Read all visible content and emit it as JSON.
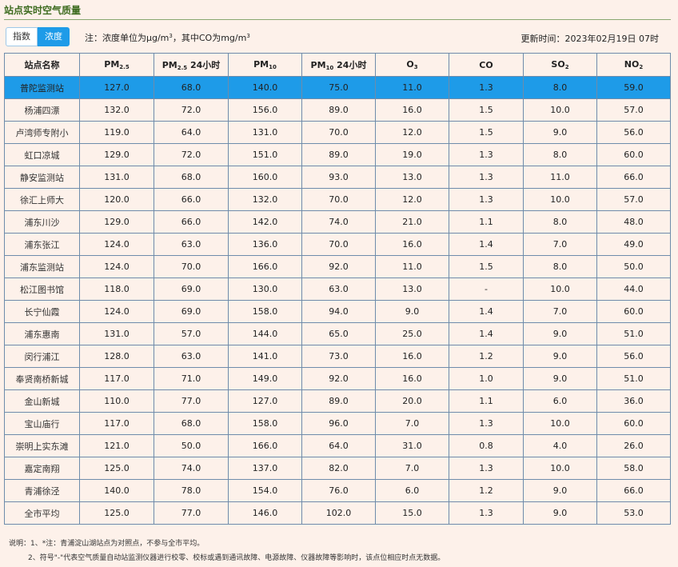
{
  "header": {
    "title": "站点实时空气质量",
    "toggle": {
      "index_label": "指数",
      "concentration_label": "浓度"
    },
    "note_prefix": "注：浓度单位为μg/m",
    "note_sup1": "3",
    "note_mid": "，其中CO为mg/m",
    "note_sup2": "3",
    "updated": "更新时间：2023年02月19日 07时"
  },
  "table": {
    "columns": [
      "站点名称",
      "PM2.5",
      "PM2.5 24小时",
      "PM10",
      "PM10 24小时",
      "O3",
      "CO",
      "SO2",
      "NO2"
    ],
    "rows": [
      [
        "普陀监测站",
        "127.0",
        "68.0",
        "140.0",
        "75.0",
        "11.0",
        "1.3",
        "8.0",
        "59.0"
      ],
      [
        "杨浦四漂",
        "132.0",
        "72.0",
        "156.0",
        "89.0",
        "16.0",
        "1.5",
        "10.0",
        "57.0"
      ],
      [
        "卢湾师专附小",
        "119.0",
        "64.0",
        "131.0",
        "70.0",
        "12.0",
        "1.5",
        "9.0",
        "56.0"
      ],
      [
        "虹口凉城",
        "129.0",
        "72.0",
        "151.0",
        "89.0",
        "19.0",
        "1.3",
        "8.0",
        "60.0"
      ],
      [
        "静安监测站",
        "131.0",
        "68.0",
        "160.0",
        "93.0",
        "13.0",
        "1.3",
        "11.0",
        "66.0"
      ],
      [
        "徐汇上师大",
        "120.0",
        "66.0",
        "132.0",
        "70.0",
        "12.0",
        "1.3",
        "10.0",
        "57.0"
      ],
      [
        "浦东川沙",
        "129.0",
        "66.0",
        "142.0",
        "74.0",
        "21.0",
        "1.1",
        "8.0",
        "48.0"
      ],
      [
        "浦东张江",
        "124.0",
        "63.0",
        "136.0",
        "70.0",
        "16.0",
        "1.4",
        "7.0",
        "49.0"
      ],
      [
        "浦东监测站",
        "124.0",
        "70.0",
        "166.0",
        "92.0",
        "11.0",
        "1.5",
        "8.0",
        "50.0"
      ],
      [
        "松江图书馆",
        "118.0",
        "69.0",
        "130.0",
        "63.0",
        "13.0",
        "-",
        "10.0",
        "44.0"
      ],
      [
        "长宁仙霞",
        "124.0",
        "69.0",
        "158.0",
        "94.0",
        "9.0",
        "1.4",
        "7.0",
        "60.0"
      ],
      [
        "浦东惠南",
        "131.0",
        "57.0",
        "144.0",
        "65.0",
        "25.0",
        "1.4",
        "9.0",
        "51.0"
      ],
      [
        "闵行浦江",
        "128.0",
        "63.0",
        "141.0",
        "73.0",
        "16.0",
        "1.2",
        "9.0",
        "56.0"
      ],
      [
        "奉贤南桥新城",
        "117.0",
        "71.0",
        "149.0",
        "92.0",
        "16.0",
        "1.0",
        "9.0",
        "51.0"
      ],
      [
        "金山新城",
        "110.0",
        "77.0",
        "127.0",
        "89.0",
        "20.0",
        "1.1",
        "6.0",
        "36.0"
      ],
      [
        "宝山庙行",
        "117.0",
        "68.0",
        "158.0",
        "96.0",
        "7.0",
        "1.3",
        "10.0",
        "60.0"
      ],
      [
        "崇明上实东滩",
        "121.0",
        "50.0",
        "166.0",
        "64.0",
        "31.0",
        "0.8",
        "4.0",
        "26.0"
      ],
      [
        "嘉定南翔",
        "125.0",
        "74.0",
        "137.0",
        "82.0",
        "7.0",
        "1.3",
        "10.0",
        "58.0"
      ],
      [
        "青浦徐泾",
        "140.0",
        "78.0",
        "154.0",
        "76.0",
        "6.0",
        "1.2",
        "9.0",
        "66.0"
      ],
      [
        "全市平均",
        "125.0",
        "77.0",
        "146.0",
        "102.0",
        "15.0",
        "1.3",
        "9.0",
        "53.0"
      ]
    ]
  },
  "footer": {
    "line1": "说明：1、*注：青浦淀山湖站点为对照点，不参与全市平均。",
    "line2": "2、符号\"-\"代表空气质量自动站监测仪器进行校零、校标或遇到通讯故障、电源故障、仪器故障等影响时，该点位相应时点无数据。"
  },
  "colors": {
    "accent": "#1e9be8",
    "title_green": "#3d6b1f",
    "background": "#fdf1ea"
  }
}
